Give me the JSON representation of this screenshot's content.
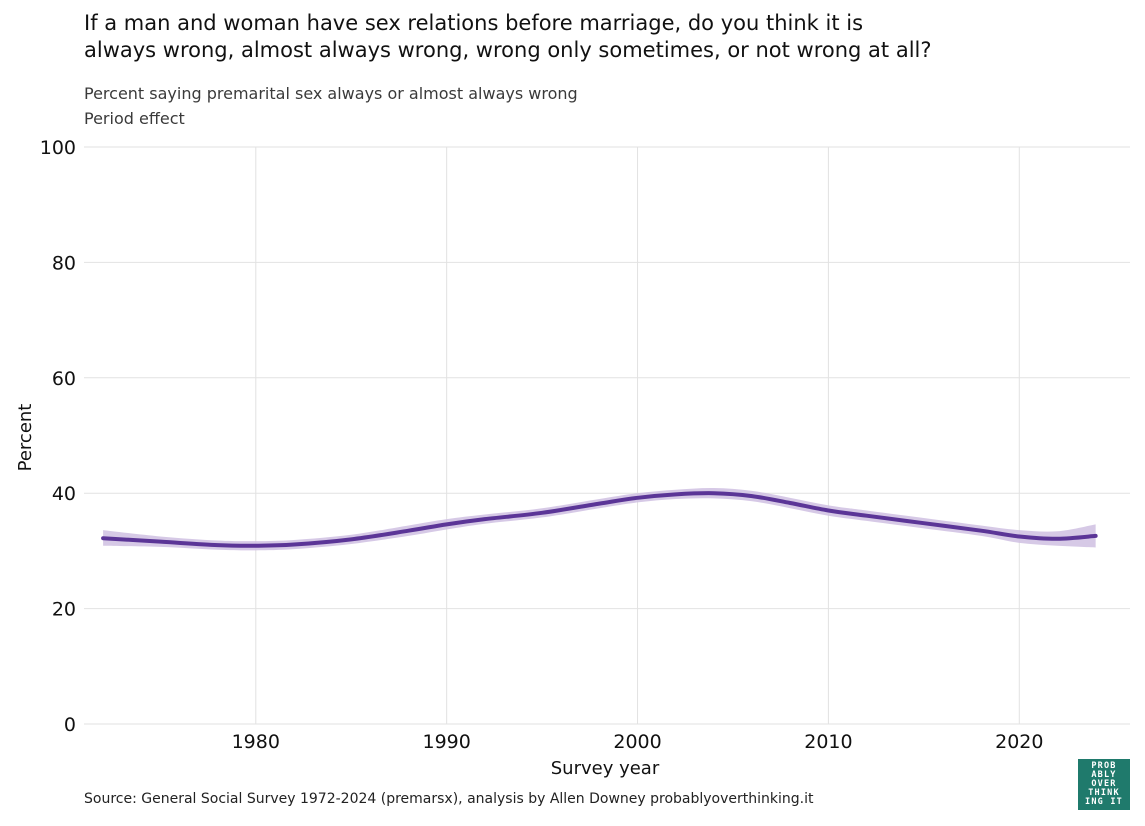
{
  "chart_data": {
    "type": "line",
    "title_lines": [
      "If a man and woman have sex relations before marriage, do you think it is",
      "always wrong, almost always wrong, wrong only sometimes, or not wrong at all?"
    ],
    "subtitle_lines": [
      "Percent saying premarital sex always or almost always wrong",
      "Period effect"
    ],
    "xlabel": "Survey year",
    "ylabel": "Percent",
    "xlim": [
      1971,
      2025.8
    ],
    "ylim": [
      0,
      100
    ],
    "x_ticks": [
      1980,
      1990,
      2000,
      2010,
      2020
    ],
    "y_ticks": [
      0,
      20,
      40,
      60,
      80,
      100
    ],
    "grid": true,
    "series": [
      {
        "color": "#5b3597",
        "band_color": "#cfc0e2",
        "x": [
          1972,
          1975,
          1978,
          1980,
          1982,
          1985,
          1988,
          1990,
          1992,
          1995,
          1998,
          2000,
          2002,
          2004,
          2006,
          2008,
          2010,
          2012,
          2015,
          2018,
          2020,
          2022,
          2024
        ],
        "y": [
          32.2,
          31.6,
          31.0,
          30.9,
          31.1,
          32.0,
          33.5,
          34.6,
          35.5,
          36.6,
          38.2,
          39.2,
          39.8,
          40.0,
          39.5,
          38.3,
          37.0,
          36.1,
          34.8,
          33.5,
          32.5,
          32.1,
          32.6
        ],
        "lower": [
          30.9,
          30.7,
          30.2,
          30.1,
          30.3,
          31.2,
          32.6,
          33.7,
          34.7,
          35.8,
          37.4,
          38.4,
          39.0,
          39.1,
          38.6,
          37.4,
          36.1,
          35.2,
          33.9,
          32.6,
          31.4,
          30.9,
          30.6
        ],
        "upper": [
          33.6,
          32.5,
          31.8,
          31.7,
          31.9,
          32.8,
          34.4,
          35.5,
          36.3,
          37.4,
          39.0,
          40.0,
          40.6,
          40.9,
          40.4,
          39.2,
          37.9,
          37.0,
          35.7,
          34.4,
          33.6,
          33.4,
          34.6
        ]
      }
    ],
    "source": "Source: General Social Survey 1972-2024 (premarsx), analysis by Allen Downey probablyoverthinking.it"
  },
  "logo": {
    "lines": [
      "PROB",
      "ABLY",
      "OVER",
      "THINK",
      "ING IT"
    ],
    "color": "#1f7a6c"
  }
}
